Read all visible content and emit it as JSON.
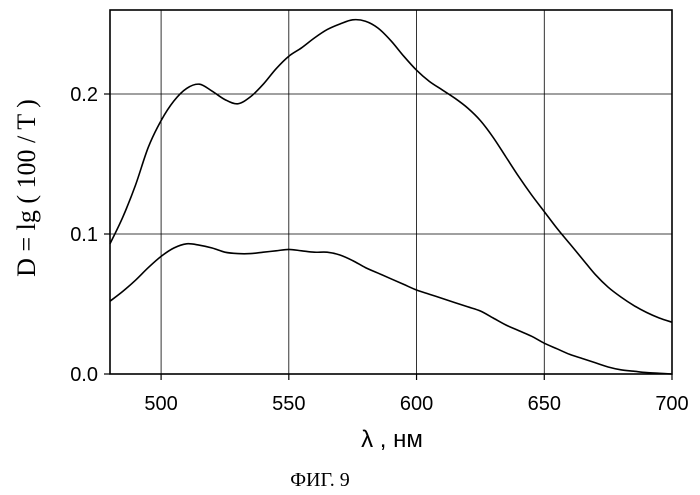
{
  "chart_data": {
    "type": "line",
    "xlabel": "λ , нм",
    "ylabel": "D = lg ( 100 / T )",
    "caption": "ФИГ. 9",
    "xlim": [
      480,
      700
    ],
    "ylim": [
      0,
      0.26
    ],
    "x_ticks": [
      500,
      550,
      600,
      650,
      700
    ],
    "y_ticks": [
      0.0,
      0.1,
      0.2
    ],
    "x_tick_labels": [
      "500",
      "550",
      "600",
      "650",
      "700"
    ],
    "y_tick_labels": [
      "0.0",
      "0.1",
      "0.2"
    ],
    "grid": true,
    "series": [
      {
        "x": [
          480,
          485,
          490,
          495,
          500,
          505,
          510,
          515,
          520,
          525,
          530,
          535,
          540,
          545,
          550,
          555,
          560,
          565,
          570,
          575,
          580,
          585,
          590,
          595,
          600,
          605,
          610,
          615,
          620,
          625,
          630,
          635,
          640,
          645,
          650,
          655,
          660,
          665,
          670,
          675,
          680,
          685,
          690,
          695,
          700
        ],
        "values": [
          0.093,
          0.112,
          0.135,
          0.162,
          0.181,
          0.195,
          0.204,
          0.207,
          0.202,
          0.196,
          0.193,
          0.198,
          0.207,
          0.218,
          0.227,
          0.233,
          0.24,
          0.246,
          0.25,
          0.253,
          0.252,
          0.247,
          0.238,
          0.227,
          0.217,
          0.209,
          0.203,
          0.197,
          0.19,
          0.181,
          0.169,
          0.155,
          0.141,
          0.128,
          0.116,
          0.104,
          0.093,
          0.082,
          0.071,
          0.062,
          0.055,
          0.049,
          0.044,
          0.04,
          0.037
        ]
      },
      {
        "x": [
          480,
          485,
          490,
          495,
          500,
          505,
          510,
          515,
          520,
          525,
          530,
          535,
          540,
          545,
          550,
          555,
          560,
          565,
          570,
          575,
          580,
          585,
          590,
          595,
          600,
          605,
          610,
          615,
          620,
          625,
          630,
          635,
          640,
          645,
          650,
          655,
          660,
          665,
          670,
          675,
          680,
          685,
          690,
          695,
          700
        ],
        "values": [
          0.052,
          0.059,
          0.067,
          0.076,
          0.084,
          0.09,
          0.093,
          0.092,
          0.09,
          0.087,
          0.086,
          0.086,
          0.087,
          0.088,
          0.089,
          0.088,
          0.087,
          0.087,
          0.085,
          0.081,
          0.076,
          0.072,
          0.068,
          0.064,
          0.06,
          0.057,
          0.054,
          0.051,
          0.048,
          0.045,
          0.04,
          0.035,
          0.031,
          0.027,
          0.022,
          0.018,
          0.014,
          0.011,
          0.008,
          0.005,
          0.003,
          0.002,
          0.001,
          0.0005,
          0.0
        ]
      }
    ]
  }
}
